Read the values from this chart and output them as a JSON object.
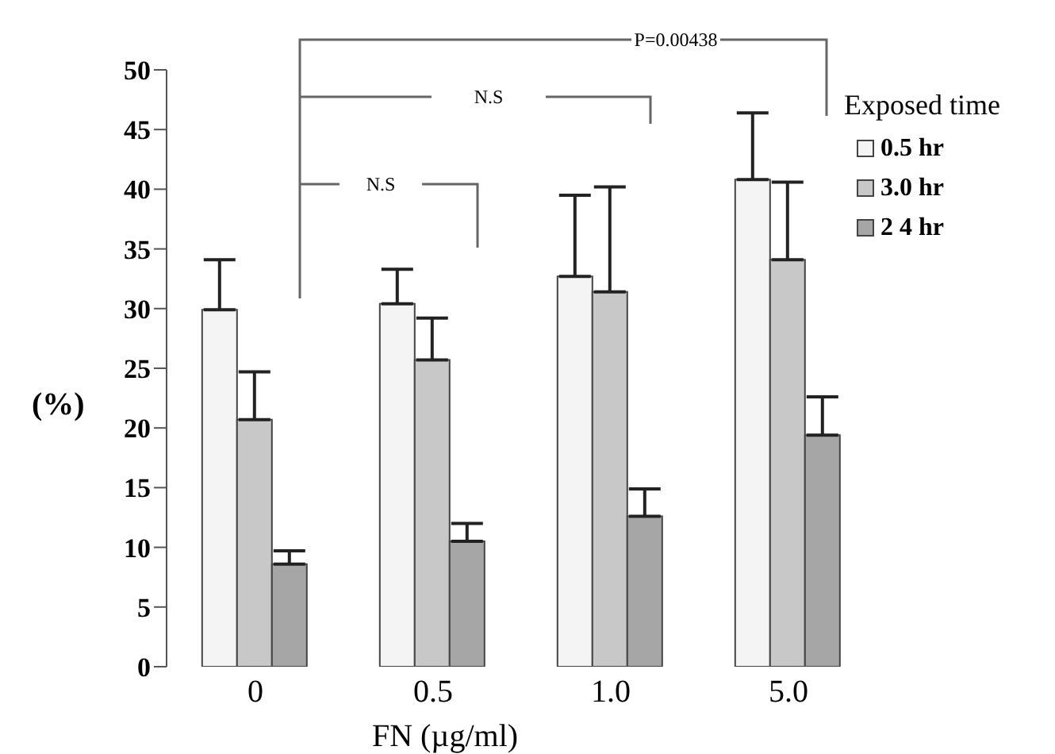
{
  "chart_data": {
    "type": "bar",
    "xlabel": "FN (µg/ml)",
    "ylabel": "(%)",
    "legend_title": "Exposed time",
    "categories": [
      "0",
      "0.5",
      "1.0",
      "5.0"
    ],
    "series": [
      {
        "name": "0.5 hr",
        "color": "#f4f4f4",
        "values": [
          29.9,
          30.4,
          32.7,
          40.8
        ],
        "errors": [
          [
            29.9,
            34.1
          ],
          [
            30.4,
            33.3
          ],
          [
            32.7,
            39.5
          ],
          [
            40.8,
            46.4
          ]
        ]
      },
      {
        "name": "3.0 hr",
        "color": "#c8c8c8",
        "values": [
          20.7,
          25.7,
          31.4,
          34.1
        ],
        "errors": [
          [
            20.7,
            24.7
          ],
          [
            25.7,
            29.2
          ],
          [
            31.4,
            40.2
          ],
          [
            34.1,
            40.6
          ]
        ]
      },
      {
        "name": "2 4 hr",
        "color": "#a6a6a6",
        "values": [
          8.6,
          10.5,
          12.6,
          19.4
        ],
        "errors": [
          [
            8.6,
            9.7
          ],
          [
            10.5,
            12.0
          ],
          [
            12.6,
            14.9
          ],
          [
            19.4,
            22.6
          ]
        ]
      }
    ],
    "ylim": [
      0,
      50
    ],
    "yticks": [
      0,
      5,
      10,
      15,
      20,
      25,
      30,
      35,
      40,
      45,
      50
    ],
    "grid": false,
    "legend": "top right",
    "annotations": [
      "N.S",
      "N.S",
      "P=0.00438"
    ]
  }
}
